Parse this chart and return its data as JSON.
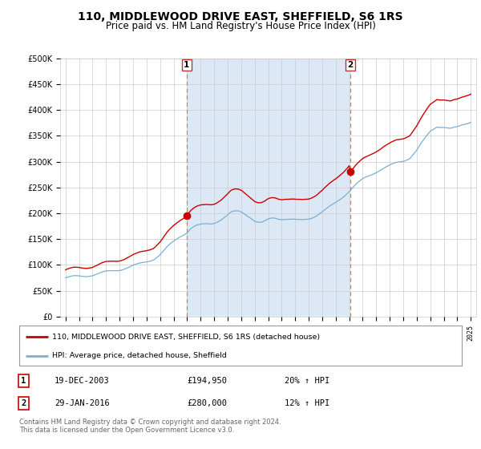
{
  "title": "110, MIDDLEWOOD DRIVE EAST, SHEFFIELD, S6 1RS",
  "subtitle": "Price paid vs. HM Land Registry's House Price Index (HPI)",
  "title_fontsize": 10,
  "subtitle_fontsize": 8.5,
  "background_color": "#ffffff",
  "plot_bg_color": "#ffffff",
  "shade_color": "#dce8f5",
  "grid_color": "#cccccc",
  "sale1_date": 2003.97,
  "sale1_price": 194950,
  "sale2_date": 2016.08,
  "sale2_price": 280000,
  "legend_label_red": "110, MIDDLEWOOD DRIVE EAST, SHEFFIELD, S6 1RS (detached house)",
  "legend_label_blue": "HPI: Average price, detached house, Sheffield",
  "annotation1_date": "19-DEC-2003",
  "annotation1_price": "£194,950",
  "annotation1_hpi": "20% ↑ HPI",
  "annotation2_date": "29-JAN-2016",
  "annotation2_price": "£280,000",
  "annotation2_hpi": "12% ↑ HPI",
  "footer": "Contains HM Land Registry data © Crown copyright and database right 2024.\nThis data is licensed under the Open Government Licence v3.0.",
  "ylim": [
    0,
    500000
  ],
  "yticks": [
    0,
    50000,
    100000,
    150000,
    200000,
    250000,
    300000,
    350000,
    400000,
    450000,
    500000
  ],
  "red_color": "#cc0000",
  "blue_color": "#7aafd4",
  "vline_color": "#e87070"
}
